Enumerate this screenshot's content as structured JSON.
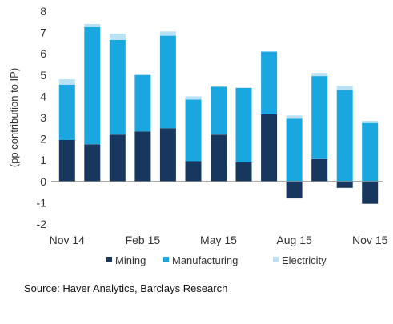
{
  "chart_data": {
    "type": "bar",
    "stacked": true,
    "ylabel": "(pp contribution to IP)",
    "ylim": [
      -2,
      8
    ],
    "yticks": [
      -2,
      -1,
      0,
      1,
      2,
      3,
      4,
      5,
      6,
      7,
      8
    ],
    "ytick_labels": [
      "-2",
      "-1",
      "0",
      "1",
      "2",
      "3",
      "4",
      "5",
      "6",
      "7",
      "8"
    ],
    "categories": [
      "Nov 14",
      "Dec 14",
      "Jan 15",
      "Feb 15",
      "Mar 15",
      "Apr 15",
      "May 15",
      "Jun 15",
      "Jul 15",
      "Aug 15",
      "Sep 15",
      "Oct 15",
      "Nov 15"
    ],
    "xtick_labels": [
      "Nov 14",
      "",
      "",
      "Feb 15",
      "",
      "",
      "May 15",
      "",
      "",
      "Aug 15",
      "",
      "",
      "Nov 15"
    ],
    "series": [
      {
        "name": "Mining",
        "color": "#17375e",
        "values": [
          1.95,
          1.75,
          2.2,
          2.35,
          2.5,
          0.95,
          2.2,
          0.9,
          3.15,
          -0.8,
          1.05,
          -0.3,
          -1.05
        ]
      },
      {
        "name": "Manufacturing",
        "color": "#1aa7e0",
        "values": [
          2.6,
          5.5,
          4.45,
          2.65,
          4.35,
          2.9,
          2.25,
          3.5,
          2.95,
          2.95,
          3.9,
          4.3,
          2.75
        ]
      },
      {
        "name": "Electricity",
        "color": "#b8e2f4",
        "values": [
          0.25,
          0.15,
          0.3,
          0.05,
          0.2,
          0.15,
          0.0,
          0.0,
          0.0,
          0.15,
          0.15,
          0.2,
          0.1
        ]
      }
    ],
    "legend": "bottom",
    "grid": false
  },
  "source": "Source: Haver Analytics, Barclays Research"
}
